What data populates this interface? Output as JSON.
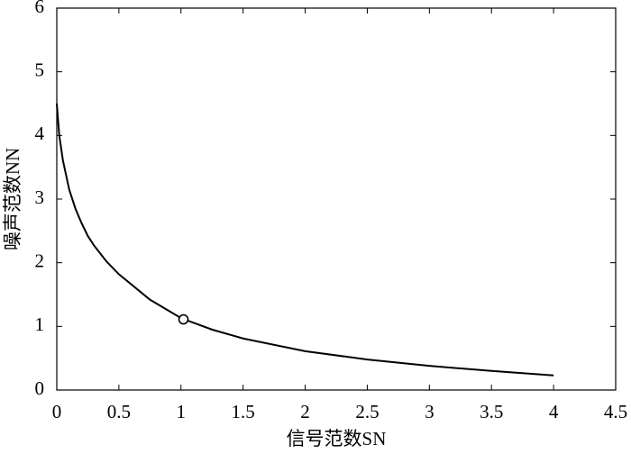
{
  "chart_data": {
    "type": "line",
    "xlabel": "信号范数SN",
    "ylabel": "噪声范数NN",
    "xlim": [
      0,
      4.5
    ],
    "xticks": [
      0,
      0.5,
      1,
      1.5,
      2,
      2.5,
      3,
      3.5,
      4,
      4.5
    ],
    "ylim": [
      0,
      6
    ],
    "yticks": [
      0,
      1,
      2,
      3,
      4,
      5,
      6
    ],
    "box": true,
    "series": [
      {
        "color": "#000000",
        "line": true,
        "x": [
          0,
          0.02,
          0.05,
          0.1,
          0.15,
          0.2,
          0.25,
          0.3,
          0.4,
          0.5,
          0.75,
          1,
          1.25,
          1.5,
          2,
          2.5,
          3,
          3.5,
          4
        ],
        "values": [
          4.5,
          4.0,
          3.6,
          3.15,
          2.85,
          2.62,
          2.42,
          2.27,
          2.02,
          1.82,
          1.42,
          1.13,
          0.95,
          0.81,
          0.61,
          0.48,
          0.38,
          0.3,
          0.23
        ]
      },
      {
        "color": "#000000",
        "line": false,
        "marker": "circle",
        "marker_fill": "#ffffff",
        "x": [
          1.02
        ],
        "values": [
          1.11
        ]
      }
    ]
  }
}
